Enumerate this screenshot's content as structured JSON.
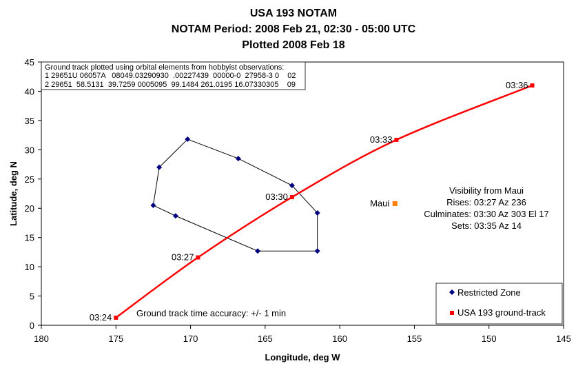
{
  "chart_data": {
    "type": "scatter",
    "title": [
      "USA 193 NOTAM",
      "NOTAM Period: 2008 Feb 21, 02:30 - 05:00 UTC",
      "Plotted 2008 Feb 18"
    ],
    "xlabel": "Longitude, deg W",
    "ylabel": "Latitude, deg N",
    "xlim": [
      180,
      145
    ],
    "ylim": [
      0,
      45
    ],
    "x_reversed": true,
    "xticks": [
      "180",
      "175",
      "170",
      "165",
      "160",
      "155",
      "150",
      "145"
    ],
    "xtick_values": [
      180,
      175,
      170,
      165,
      160,
      155,
      150,
      145
    ],
    "yticks": [
      "0",
      "5",
      "10",
      "15",
      "20",
      "25",
      "30",
      "35",
      "40",
      "45"
    ],
    "ytick_values": [
      0,
      5,
      10,
      15,
      20,
      25,
      30,
      35,
      40,
      45
    ],
    "grid": false,
    "legend_position": "bottom-right",
    "series": [
      {
        "name": "Restricted Zone",
        "color": "#000080",
        "line_color": "#000000",
        "marker": "diamond",
        "points": [
          [
            172.5,
            20.5
          ],
          [
            172.1,
            27.0
          ],
          [
            170.2,
            31.8
          ],
          [
            166.8,
            28.5
          ],
          [
            163.2,
            23.9
          ],
          [
            161.5,
            19.2
          ],
          [
            161.5,
            12.7
          ],
          [
            165.5,
            12.7
          ],
          [
            171.0,
            18.7
          ],
          [
            172.5,
            20.5
          ]
        ]
      },
      {
        "name": "USA 193 ground-track",
        "color": "#FF0000",
        "marker": "square",
        "points": [
          [
            175.0,
            1.3
          ],
          [
            169.5,
            11.6
          ],
          [
            163.2,
            21.9
          ],
          [
            156.2,
            31.7
          ],
          [
            147.1,
            41.0
          ]
        ],
        "labels": [
          "03:24",
          "03:27",
          "03:30",
          "03:33",
          "03:36"
        ]
      },
      {
        "name": "Maui",
        "color": "#FF8000",
        "marker": "square",
        "points": [
          [
            156.3,
            20.8
          ]
        ],
        "labels": [
          "Maui"
        ]
      }
    ],
    "annotations": {
      "notes": [
        "Ground track plotted using orbital elements from hobbyist observations:",
        "1 29651U 06057A   08049.03290930  .00227439  00000-0  27958-3 0    02",
        "2 29651  58.5131  39.7259 0005095  99.1484 261.0195 16.07330305    09"
      ],
      "visibility": [
        "Visibility from Maui",
        "Rises: 03:27 Az 236",
        "Culminates: 03:30 Az 303 El 17",
        "Sets: 03:35 Az 14"
      ],
      "accuracy": "Ground track time accuracy: +/- 1 min"
    }
  }
}
